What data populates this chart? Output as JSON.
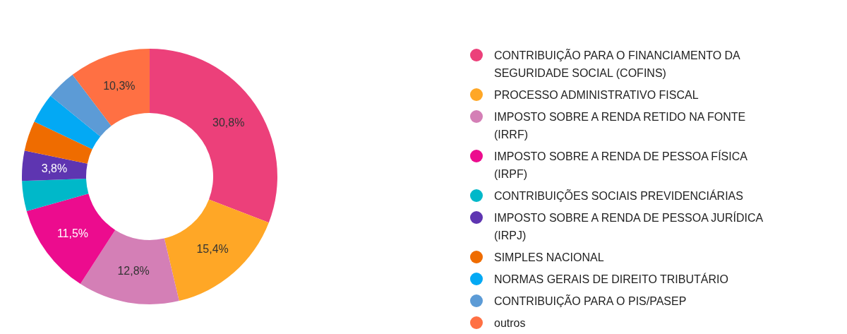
{
  "chart_data": {
    "type": "donut",
    "legend": "right",
    "categories": [
      "CONTRIBUIÇÃO PARA O FINANCIAMENTO DA SEGURIDADE SOCIAL (COFINS)",
      "PROCESSO ADMINISTRATIVO FISCAL",
      "IMPOSTO SOBRE A RENDA RETIDO NA FONTE (IRRF)",
      "IMPOSTO SOBRE A RENDA DE PESSOA FÍSICA (IRPF)",
      "CONTRIBUIÇÕES SOCIAIS PREVIDENCIÁRIAS",
      "IMPOSTO SOBRE A RENDA DE PESSOA JURÍDICA (IRPJ)",
      "SIMPLES NACIONAL",
      "NORMAS GERAIS DE DIREITO TRIBUTÁRIO",
      "CONTRIBUIÇÃO PARA O PIS/PASEP",
      "outros"
    ],
    "values": [
      30.8,
      15.4,
      12.8,
      11.5,
      3.8,
      3.8,
      3.8,
      3.8,
      3.8,
      10.3
    ],
    "value_labels": [
      "30,8%",
      "15,4%",
      "12,8%",
      "11,5%",
      null,
      "3,8%",
      null,
      null,
      null,
      "10,3%"
    ],
    "colors": [
      "#ec407a",
      "#ffa726",
      "#d47fb6",
      "#ec0c8e",
      "#00b8c9",
      "#5e35b1",
      "#ef6c00",
      "#03a9f4",
      "#5c9bd6",
      "#ff7043"
    ]
  }
}
